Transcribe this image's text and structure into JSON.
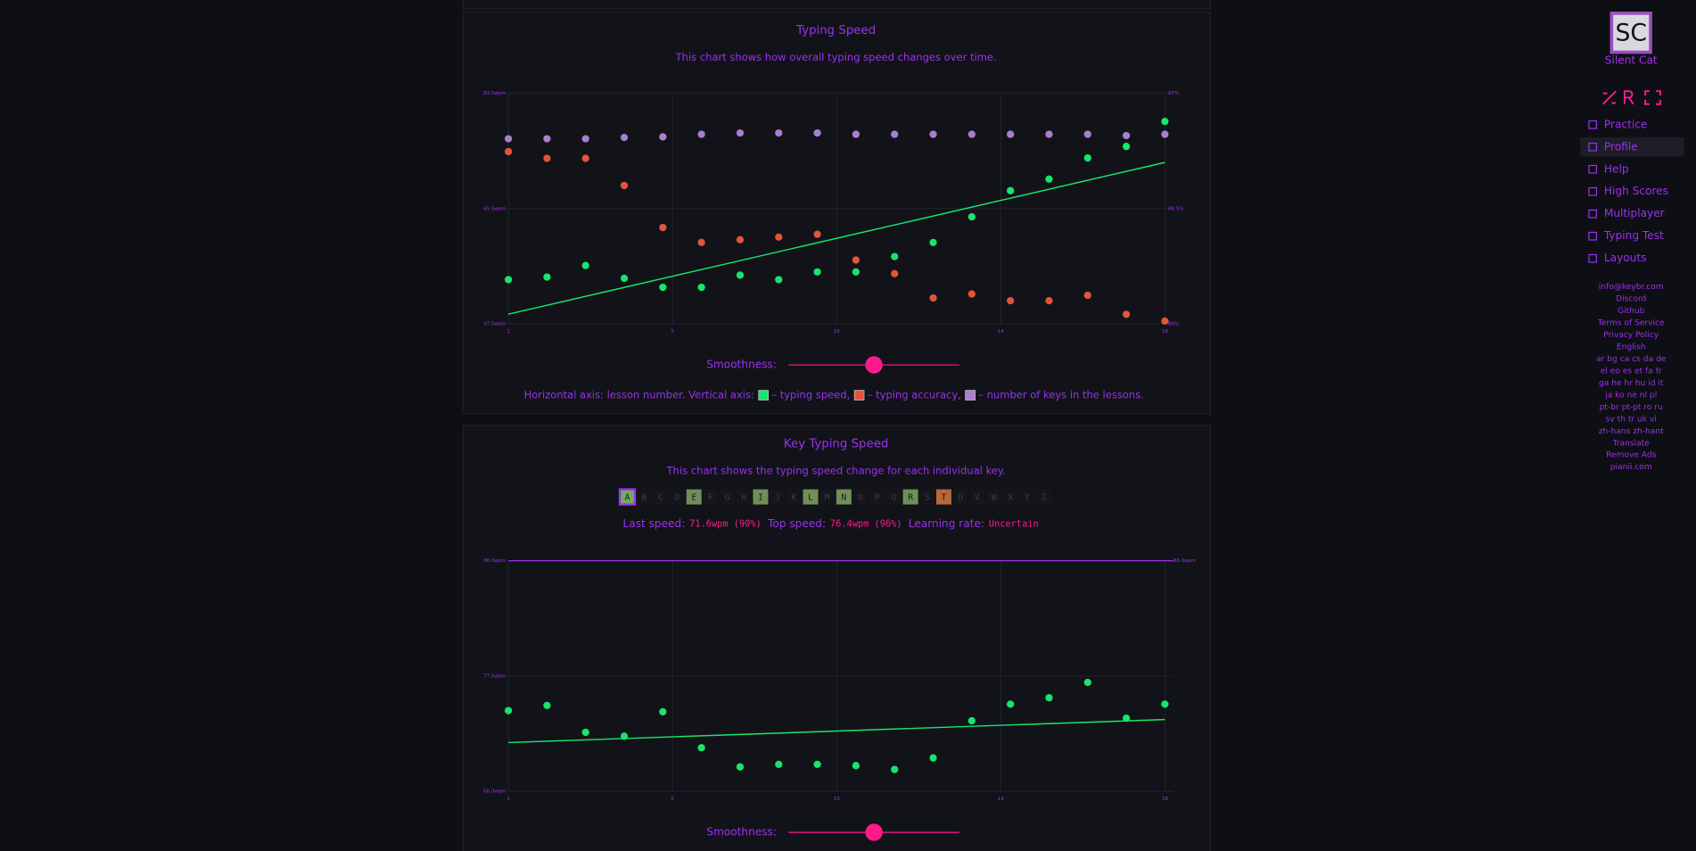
{
  "sidebar": {
    "avatar": "SC",
    "user_name": "Silent Cat",
    "active": "Profile",
    "menu": [
      "Practice",
      "Profile",
      "Help",
      "High Scores",
      "Multiplayer",
      "Typing Test",
      "Layouts"
    ],
    "links": [
      "info@keybr.com",
      "Discord",
      "Github",
      "Terms of Service",
      "Privacy Policy",
      "English",
      "ar bg ca cs da de",
      "el eo es et fa fr",
      "ga he hr hu id it",
      "ja ko ne nl pl",
      "pt-br pt-pt ro ru",
      "sv th tr uk vi",
      "zh-hans zh-hant",
      "Translate",
      "Remove Ads",
      "pianii.com"
    ]
  },
  "speed_chart": {
    "type": "scatter",
    "title": "Typing Speed",
    "subtitle": "This chart shows how overall typing speed changes over time.",
    "smoothness_label": "Smoothness:",
    "legend_prefix": "Horizontal axis: lesson number. Vertical axis:",
    "x": [
      1,
      2,
      3,
      4,
      5,
      6,
      7,
      8,
      9,
      10,
      11,
      12,
      13,
      14,
      15,
      16,
      17,
      18
    ],
    "xlim": [
      1,
      18
    ],
    "xticks": [
      1,
      {
        "value": 5.25,
        "label": "5"
      },
      {
        "value": 9.5,
        "label": "10"
      },
      {
        "value": 13.75,
        "label": "14"
      },
      18
    ],
    "ylim": [
      47.5,
      83.5
    ],
    "yticks": [
      {
        "value": 47.5,
        "label": "47.5wpm"
      },
      {
        "value": 65.5,
        "label": "65.5wpm"
      },
      {
        "value": 83.5,
        "label": "83.5wpm"
      }
    ],
    "y2lim": [
      80,
      97
    ],
    "y2ticks": [
      {
        "value": 80,
        "label": "80%"
      },
      {
        "value": 88.5,
        "label": "88.5%"
      },
      {
        "value": 97,
        "label": "97%"
      }
    ],
    "grid": true,
    "series": [
      {
        "name": "– typing speed,",
        "color": "#17e56c",
        "values": [
          54.4,
          54.8,
          56.6,
          54.6,
          53.2,
          53.2,
          55.1,
          54.4,
          55.6,
          55.6,
          58.0,
          60.2,
          64.2,
          68.3,
          70.1,
          73.4,
          75.2,
          79.1
        ]
      },
      {
        "name": "– typing accuracy,",
        "color": "#e2553a",
        "axis": "y2",
        "values": [
          92.7,
          92.2,
          92.2,
          90.2,
          87.1,
          86.0,
          86.2,
          86.4,
          86.6,
          84.7,
          83.7,
          81.9,
          82.2,
          81.7,
          81.7,
          82.1,
          80.7,
          80.2
        ]
      },
      {
        "name": "– number of keys in the lessons.",
        "color": "#a77fd0",
        "values": [
          76.4,
          76.4,
          76.4,
          76.6,
          76.7,
          77.1,
          77.3,
          77.3,
          77.3,
          77.1,
          77.1,
          77.1,
          77.1,
          77.1,
          77.1,
          77.1,
          76.9,
          77.1
        ]
      }
    ],
    "trend": {
      "color": "#17e56c",
      "x": [
        1,
        18
      ],
      "values": [
        49.0,
        72.7
      ]
    }
  },
  "key_chart": {
    "type": "scatter",
    "title": "Key Typing Speed",
    "subtitle": "This chart shows the typing speed change for each individual key.",
    "smoothness_label": "Smoothness:",
    "keys": [
      {
        "label": "A",
        "state": "selected"
      },
      {
        "label": "B",
        "state": "locked"
      },
      {
        "label": "C",
        "state": "locked"
      },
      {
        "label": "D",
        "state": "locked"
      },
      {
        "label": "E",
        "state": "learned"
      },
      {
        "label": "F",
        "state": "locked"
      },
      {
        "label": "G",
        "state": "locked"
      },
      {
        "label": "H",
        "state": "locked"
      },
      {
        "label": "I",
        "state": "learned"
      },
      {
        "label": "J",
        "state": "locked"
      },
      {
        "label": "K",
        "state": "locked"
      },
      {
        "label": "L",
        "state": "learned"
      },
      {
        "label": "M",
        "state": "locked"
      },
      {
        "label": "N",
        "state": "learned"
      },
      {
        "label": "O",
        "state": "locked"
      },
      {
        "label": "P",
        "state": "locked"
      },
      {
        "label": "Q",
        "state": "locked"
      },
      {
        "label": "R",
        "state": "learned"
      },
      {
        "label": "S",
        "state": "locked"
      },
      {
        "label": "T",
        "state": "focus"
      },
      {
        "label": "U",
        "state": "locked"
      },
      {
        "label": "V",
        "state": "locked"
      },
      {
        "label": "W",
        "state": "locked"
      },
      {
        "label": "X",
        "state": "locked"
      },
      {
        "label": "Y",
        "state": "locked"
      },
      {
        "label": "Z",
        "state": "locked"
      }
    ],
    "key_colors": {
      "selected": "#6fae5f",
      "learned": "#6f8f58",
      "focus": "#b8673b",
      "locked": "#15161c"
    },
    "stats": [
      {
        "label": "Last speed:",
        "value": "71.6wpm (90%)"
      },
      {
        "label": "Top speed:",
        "value": "76.4wpm (96%)"
      },
      {
        "label": "Learning rate:",
        "value": "Uncertain"
      }
    ],
    "x": [
      1,
      2,
      3,
      4,
      5,
      6,
      7,
      8,
      9,
      10,
      11,
      12,
      13,
      14,
      15,
      16,
      17,
      18
    ],
    "xlim": [
      1,
      18
    ],
    "xticks": [
      1,
      {
        "value": 5.25,
        "label": "5"
      },
      {
        "value": 9.5,
        "label": "10"
      },
      {
        "value": 13.75,
        "label": "14"
      },
      18
    ],
    "ylim": [
      68,
      86
    ],
    "yticks": [
      {
        "value": 68,
        "label": "68.0wpm"
      },
      {
        "value": 77,
        "label": "77.0wpm"
      },
      {
        "value": 86,
        "label": "86.0wpm"
      }
    ],
    "grid": true,
    "target": {
      "value": 86,
      "label": "86.0wpm",
      "color": "#9b30ef"
    },
    "series": [
      {
        "color": "#17e56c",
        "values": [
          74.3,
          74.7,
          72.6,
          72.3,
          74.2,
          71.4,
          69.9,
          70.1,
          70.1,
          70.0,
          69.7,
          70.6,
          73.5,
          74.8,
          75.3,
          76.5,
          73.7,
          74.8
        ]
      }
    ],
    "trend": {
      "color": "#17e56c",
      "x": [
        1,
        18
      ],
      "values": [
        71.8,
        73.6
      ]
    }
  }
}
